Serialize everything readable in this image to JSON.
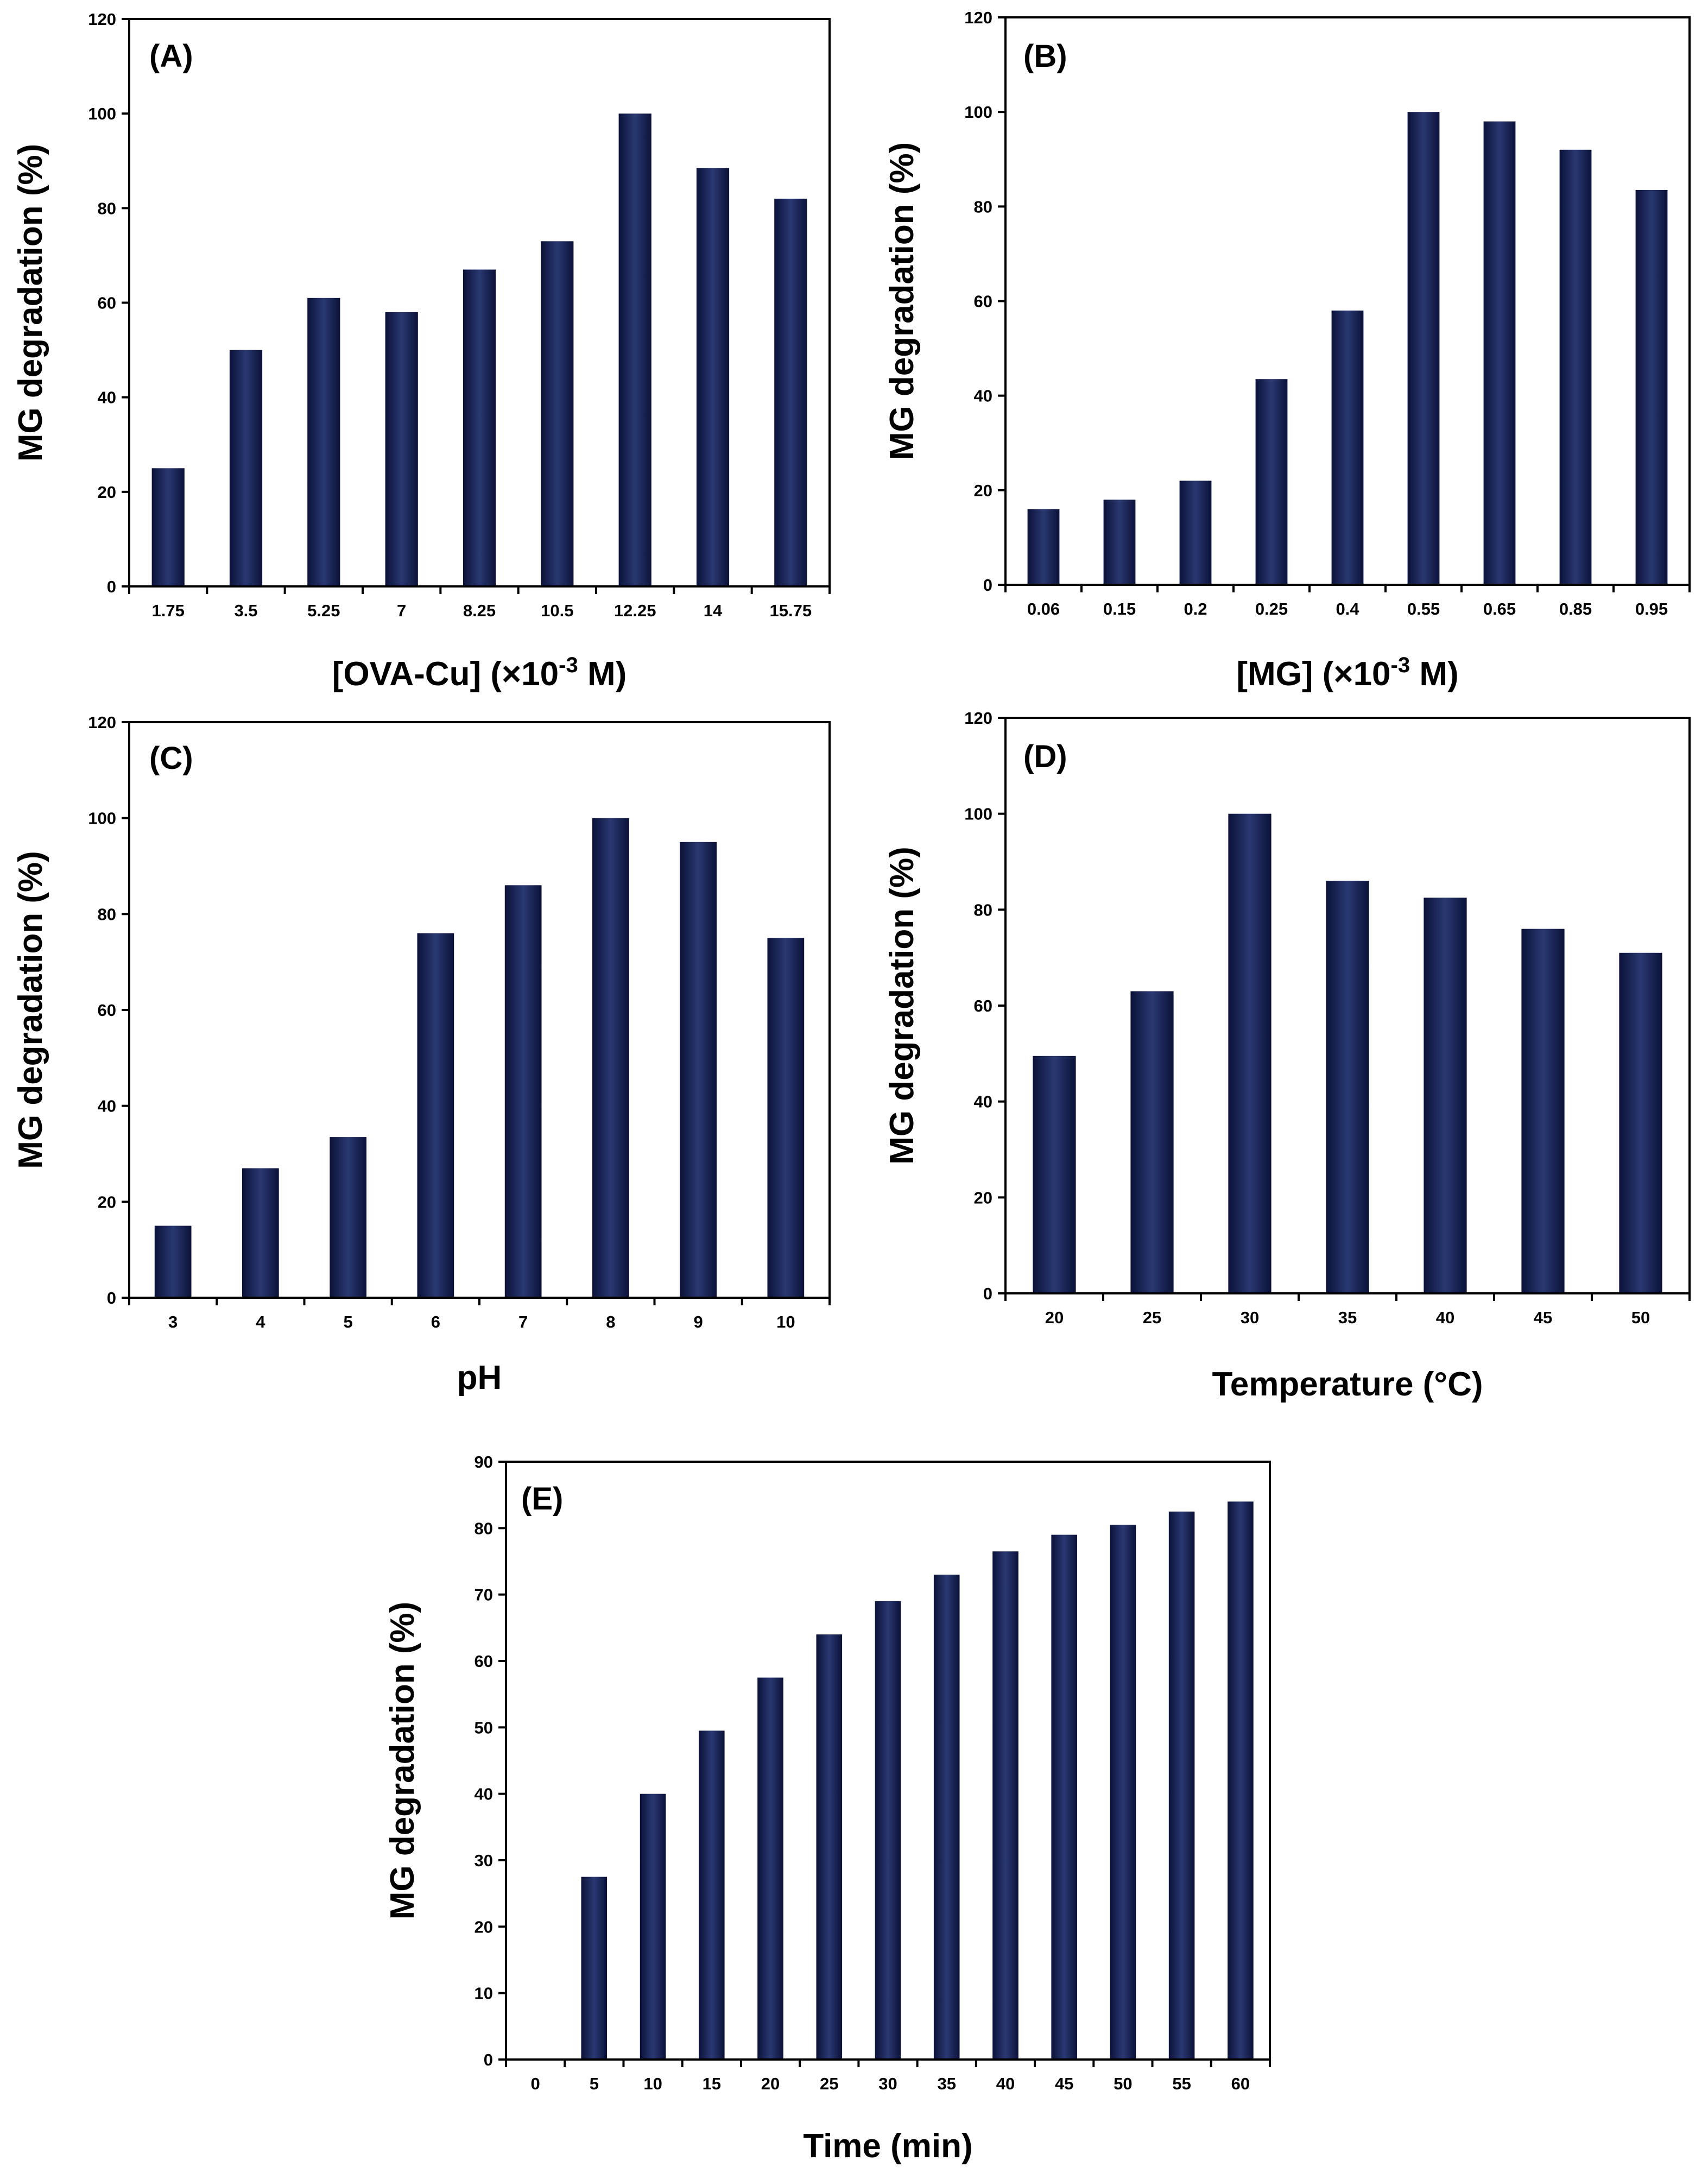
{
  "colors": {
    "bar_center": "#2a3872",
    "bar_edge": "#0b1238",
    "axis": "#000000"
  },
  "chart_data": [
    {
      "type": "bar",
      "panel_label": "(A)",
      "categories": [
        "1.75",
        "3.5",
        "5.25",
        "7",
        "8.25",
        "10.5",
        "12.25",
        "14",
        "15.75"
      ],
      "values": [
        25,
        50,
        61,
        58,
        67,
        73,
        100,
        88.5,
        82
      ],
      "ylim": [
        0,
        120
      ],
      "yticks": [
        "0",
        "20",
        "40",
        "60",
        "80",
        "100",
        "120"
      ],
      "ylabel": "MG degradation (%)",
      "xlabel": {
        "pre": "[OVA-Cu] (×10",
        "sup": "-3",
        "post": " M)"
      }
    },
    {
      "type": "bar",
      "panel_label": "(B)",
      "categories": [
        "0.06",
        "0.15",
        "0.2",
        "0.25",
        "0.4",
        "0.55",
        "0.65",
        "0.85",
        "0.95"
      ],
      "values": [
        16,
        18,
        22,
        43.5,
        58,
        100,
        98,
        92,
        83.5
      ],
      "ylim": [
        0,
        120
      ],
      "yticks": [
        "0",
        "20",
        "40",
        "60",
        "80",
        "100",
        "120"
      ],
      "ylabel": "MG degradation (%)",
      "xlabel": {
        "pre": "[MG] (×10",
        "sup": "-3",
        "post": " M)"
      }
    },
    {
      "type": "bar",
      "panel_label": "(C)",
      "categories": [
        "3",
        "4",
        "5",
        "6",
        "7",
        "8",
        "9",
        "10"
      ],
      "values": [
        15,
        27,
        33.5,
        76,
        86,
        100,
        95,
        75
      ],
      "ylim": [
        0,
        120
      ],
      "yticks": [
        "0",
        "20",
        "40",
        "60",
        "80",
        "100",
        "120"
      ],
      "ylabel": "MG degradation (%)",
      "xlabel": {
        "pre": "pH",
        "sup": "",
        "post": ""
      }
    },
    {
      "type": "bar",
      "panel_label": "(D)",
      "categories": [
        "20",
        "25",
        "30",
        "35",
        "40",
        "45",
        "50"
      ],
      "values": [
        49.5,
        63,
        100,
        86,
        82.5,
        76,
        71
      ],
      "ylim": [
        0,
        120
      ],
      "yticks": [
        "0",
        "20",
        "40",
        "60",
        "80",
        "100",
        "120"
      ],
      "ylabel": "MG degradation (%)",
      "xlabel": {
        "pre": "Temperature (°C)",
        "sup": "",
        "post": ""
      }
    },
    {
      "type": "bar",
      "panel_label": "(E)",
      "categories": [
        "0",
        "5",
        "10",
        "15",
        "20",
        "25",
        "30",
        "35",
        "40",
        "45",
        "50",
        "55",
        "60"
      ],
      "values": [
        0,
        27.5,
        40,
        49.5,
        57.5,
        64,
        69,
        73,
        76.5,
        79,
        80.5,
        82.5,
        84
      ],
      "ylim": [
        0,
        90
      ],
      "yticks": [
        "0",
        "10",
        "20",
        "30",
        "40",
        "50",
        "60",
        "70",
        "80",
        "90"
      ],
      "ylabel": "MG degradation (%)",
      "xlabel": {
        "pre": "Time (min)",
        "sup": "",
        "post": ""
      }
    }
  ]
}
